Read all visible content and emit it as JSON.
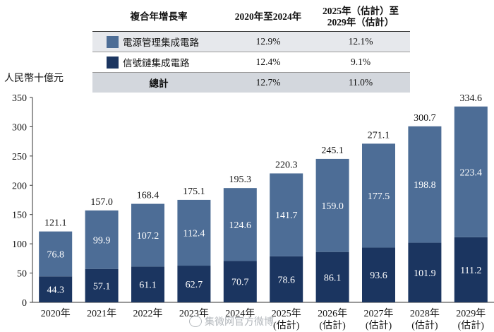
{
  "legend_table": {
    "headers": [
      "複合年增長率",
      "2020年至2024年",
      "2025年（估計）至\n2029年（估計）"
    ],
    "rows": [
      {
        "name": "電源管理集成電路",
        "cagr_2020_2024": "12.9%",
        "cagr_2025_2029": "12.1%",
        "color": "#4d6d96"
      },
      {
        "name": "信號鏈集成電路",
        "cagr_2020_2024": "12.4%",
        "cagr_2025_2029": "9.1%",
        "color": "#1b3560"
      },
      {
        "name": "總計",
        "cagr_2020_2024": "12.7%",
        "cagr_2025_2029": "11.0%"
      }
    ]
  },
  "unit_label": "人民幣十億元",
  "watermark": "集微网官方微博",
  "chart_data": {
    "type": "bar",
    "stacked": true,
    "categories": [
      "2020年",
      "2021年",
      "2022年",
      "2023年",
      "2024年",
      "2025年\n(估計)",
      "2026年\n(估計)",
      "2027年\n(估計)",
      "2028年\n(估計)",
      "2029年\n(估計)"
    ],
    "series": [
      {
        "name": "信號鏈集成電路",
        "color": "#1b3560",
        "values": [
          44.3,
          57.1,
          61.1,
          62.7,
          70.7,
          78.6,
          86.1,
          93.6,
          101.9,
          111.2
        ]
      },
      {
        "name": "電源管理集成電路",
        "color": "#4d6d96",
        "values": [
          76.8,
          99.9,
          107.2,
          112.4,
          124.6,
          141.7,
          159.0,
          177.5,
          198.8,
          223.4
        ]
      }
    ],
    "totals": [
      121.1,
      157.0,
      168.4,
      175.1,
      195.3,
      220.3,
      245.1,
      271.1,
      300.7,
      334.6
    ],
    "ylabel": "人民幣十億元",
    "ylim": [
      0,
      350
    ],
    "yticks": [
      0,
      50,
      100,
      150,
      200,
      250,
      300,
      350
    ],
    "grid": false,
    "legend": "top"
  }
}
